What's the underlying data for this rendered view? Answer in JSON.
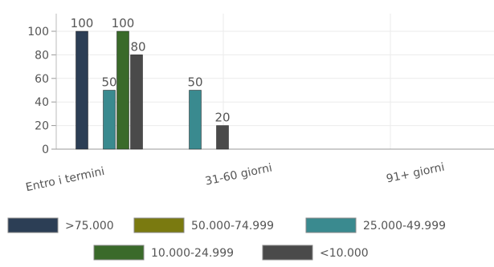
{
  "chart_data": {
    "type": "bar",
    "categories": [
      "Entro i termini",
      "31-60 giorni",
      "91+ giorni"
    ],
    "series": [
      {
        "name": ">75.000",
        "color": "#2c3e55",
        "values": [
          100,
          null,
          null
        ]
      },
      {
        "name": "50.000-74.999",
        "color": "#7a7a10",
        "values": [
          null,
          null,
          null
        ]
      },
      {
        "name": "25.000-49.999",
        "color": "#3a8a8f",
        "values": [
          50,
          50,
          null
        ]
      },
      {
        "name": "10.000-24.999",
        "color": "#3a6a2a",
        "values": [
          100,
          null,
          null
        ]
      },
      {
        "name": "<10.000",
        "color": "#4a4a4a",
        "values": [
          80,
          20,
          null
        ]
      }
    ],
    "ylim": [
      0,
      100
    ],
    "yticks": [
      0,
      20,
      40,
      60,
      80,
      100
    ],
    "grid": true,
    "legend": "bottom",
    "title": "",
    "xlabel": "",
    "ylabel": ""
  }
}
